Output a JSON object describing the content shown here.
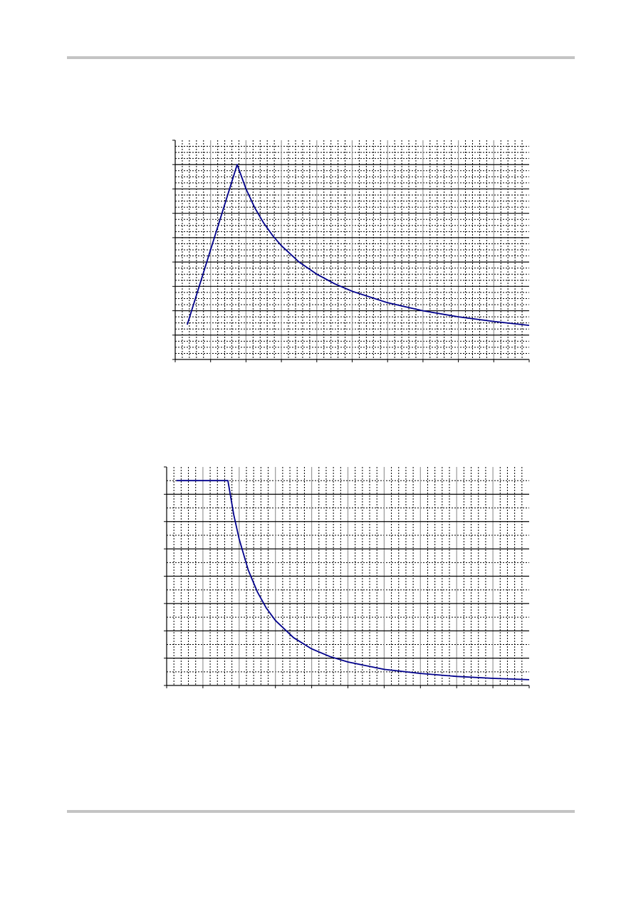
{
  "page": {
    "rule_color": "#c4c4c4"
  },
  "chart_data": [
    {
      "type": "line",
      "xlim": [
        0,
        10
      ],
      "ylim": [
        0,
        9
      ],
      "grid": true,
      "x_major_divisions": 10,
      "y_major_divisions": 9,
      "line_color": "#00008b",
      "points": [
        [
          0.34,
          1.43
        ],
        [
          1.75,
          8
        ],
        [
          2,
          7
        ],
        [
          2.25,
          6.22
        ],
        [
          2.5,
          5.6
        ],
        [
          2.75,
          5.09
        ],
        [
          3,
          4.67
        ],
        [
          3.5,
          4
        ],
        [
          4,
          3.5
        ],
        [
          4.5,
          3.11
        ],
        [
          5,
          2.8
        ],
        [
          6,
          2.33
        ],
        [
          7,
          2
        ],
        [
          8,
          1.75
        ],
        [
          9,
          1.56
        ],
        [
          10,
          1.4
        ]
      ]
    },
    {
      "type": "line",
      "xlim": [
        0,
        10
      ],
      "ylim": [
        0,
        8
      ],
      "grid": true,
      "x_major_divisions": 10,
      "y_major_divisions": 8,
      "line_color": "#00008b",
      "points": [
        [
          0.27,
          7.5
        ],
        [
          1.69,
          7.5
        ],
        [
          1.85,
          6.25
        ],
        [
          2,
          5.36
        ],
        [
          2.25,
          4.23
        ],
        [
          2.5,
          3.43
        ],
        [
          2.75,
          2.83
        ],
        [
          3,
          2.38
        ],
        [
          3.5,
          1.75
        ],
        [
          4,
          1.34
        ],
        [
          4.5,
          1.06
        ],
        [
          5,
          0.86
        ],
        [
          6,
          0.59
        ],
        [
          7,
          0.44
        ],
        [
          8,
          0.33
        ],
        [
          9,
          0.26
        ],
        [
          10,
          0.21
        ]
      ]
    }
  ]
}
